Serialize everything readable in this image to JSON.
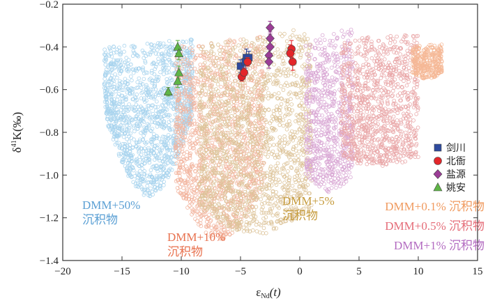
{
  "chart_data": {
    "type": "scatter",
    "xlabel_main": "ε",
    "xlabel_sub": "Nd",
    "xlabel_tail": "(t)",
    "ylabel_main": "δ",
    "ylabel_sup": "41",
    "ylabel_tail": "K(‰)",
    "xlim": [
      -20,
      15
    ],
    "ylim": [
      -1.4,
      -0.2
    ],
    "xticks": [
      -20,
      -15,
      -10,
      -5,
      0,
      5,
      10,
      15
    ],
    "yticks": [
      -1.4,
      -1.2,
      -1.0,
      -0.8,
      -0.6,
      -0.4,
      -0.2
    ],
    "xtick_labels": [
      "−20",
      "−15",
      "−10",
      "−5",
      "0",
      "5",
      "10",
      "15"
    ],
    "ytick_labels": [
      "−1.4",
      "−1.2",
      "−1.0",
      "−0.8",
      "−0.6",
      "−0.4",
      "−0.2"
    ],
    "mixing_fields": [
      {
        "name": "DMM+50%",
        "color": "#a9d4ee",
        "x_range": [
          -16.5,
          -9
        ],
        "y_top": [
          -0.4,
          -0.36
        ],
        "y_bottom": [
          -0.72,
          -1.1
        ],
        "density": 1400
      },
      {
        "name": "DMM+10%",
        "color": "#f2b49e",
        "x_range": [
          -10.5,
          -3
        ],
        "y_top": [
          -0.4,
          -0.34
        ],
        "y_bottom": [
          -1.05,
          -1.3
        ],
        "density": 1300
      },
      {
        "name": "DMM+5%",
        "color": "#ddc49a",
        "x_range": [
          -8.5,
          1
        ],
        "y_top": [
          -0.38,
          -0.31
        ],
        "y_bottom": [
          -1.15,
          -1.28
        ],
        "density": 1600
      },
      {
        "name": "DMM+1%",
        "color": "#d9a7d4",
        "x_range": [
          0.5,
          4.5
        ],
        "y_top": [
          -0.36,
          -0.31
        ],
        "y_bottom": [
          -1.0,
          -1.08
        ],
        "density": 700
      },
      {
        "name": "DMM+0.5%",
        "color": "#e9a7a8",
        "x_range": [
          3.5,
          10
        ],
        "y_top": [
          -0.36,
          -0.34
        ],
        "y_bottom": [
          -0.92,
          -0.96
        ],
        "density": 1000
      },
      {
        "name": "DMM+0.1%",
        "color": "#f5b896",
        "x_range": [
          9.5,
          12
        ],
        "y_top": [
          -0.4,
          -0.38
        ],
        "y_bottom": [
          -0.52,
          -0.55
        ],
        "density": 300
      }
    ],
    "series": [
      {
        "name": "剑川",
        "marker": "square",
        "color": "#2e4a9e",
        "points": [
          {
            "x": -5.0,
            "y": -0.49,
            "err": 0.03
          },
          {
            "x": -4.5,
            "y": -0.45,
            "err": 0.04
          },
          {
            "x": -4.3,
            "y": -0.45,
            "err": 0.03
          },
          {
            "x": -4.6,
            "y": -0.47,
            "err": 0.03
          }
        ]
      },
      {
        "name": "北衙",
        "marker": "circle",
        "color": "#e3262a",
        "points": [
          {
            "x": -4.9,
            "y": -0.54,
            "err": 0.02
          },
          {
            "x": -4.7,
            "y": -0.52,
            "err": 0.02
          },
          {
            "x": -4.4,
            "y": -0.47,
            "err": 0.02
          },
          {
            "x": -0.7,
            "y": -0.41,
            "err": 0.04
          },
          {
            "x": -0.8,
            "y": -0.43,
            "err": 0.04
          },
          {
            "x": -0.6,
            "y": -0.47,
            "err": 0.04
          }
        ]
      },
      {
        "name": "盐源",
        "marker": "diamond",
        "color": "#9b3d96",
        "points": [
          {
            "x": -2.5,
            "y": -0.31,
            "err": 0.03
          },
          {
            "x": -2.5,
            "y": -0.36,
            "err": 0.03
          },
          {
            "x": -2.5,
            "y": -0.4,
            "err": 0.03
          },
          {
            "x": -2.6,
            "y": -0.44,
            "err": 0.03
          },
          {
            "x": -2.6,
            "y": -0.47,
            "err": 0.03
          }
        ]
      },
      {
        "name": "姚安",
        "marker": "triangle",
        "color": "#5fb546",
        "points": [
          {
            "x": -11.1,
            "y": -0.61,
            "err": 0.02
          },
          {
            "x": -10.3,
            "y": -0.4,
            "err": 0.03
          },
          {
            "x": -10.2,
            "y": -0.43,
            "err": 0.03
          },
          {
            "x": -10.2,
            "y": -0.52,
            "err": 0.03
          },
          {
            "x": -10.3,
            "y": -0.56,
            "err": 0.03
          }
        ]
      }
    ],
    "annotations": [
      {
        "id": "dmm50",
        "lines": [
          "DMM+50%",
          "沉积物"
        ],
        "color": "#5a9fd4"
      },
      {
        "id": "dmm10",
        "lines": [
          "DMM+10%",
          "沉积物"
        ],
        "color": "#e8714e"
      },
      {
        "id": "dmm5",
        "lines": [
          "DMM+5%",
          "沉积物"
        ],
        "color": "#c59a3a"
      },
      {
        "id": "dmm01",
        "lines": [
          "DMM+0.1% 沉积物"
        ],
        "color": "#f09a5f"
      },
      {
        "id": "dmm05",
        "lines": [
          "DMM+0.5% 沉积物"
        ],
        "color": "#e56d79"
      },
      {
        "id": "dmm1",
        "lines": [
          "DMM+1% 沉积物"
        ],
        "color": "#b36bc1"
      }
    ],
    "legend": {
      "placement": "right",
      "entries": [
        "剑川",
        "北衙",
        "盐源",
        "姚安"
      ]
    }
  }
}
